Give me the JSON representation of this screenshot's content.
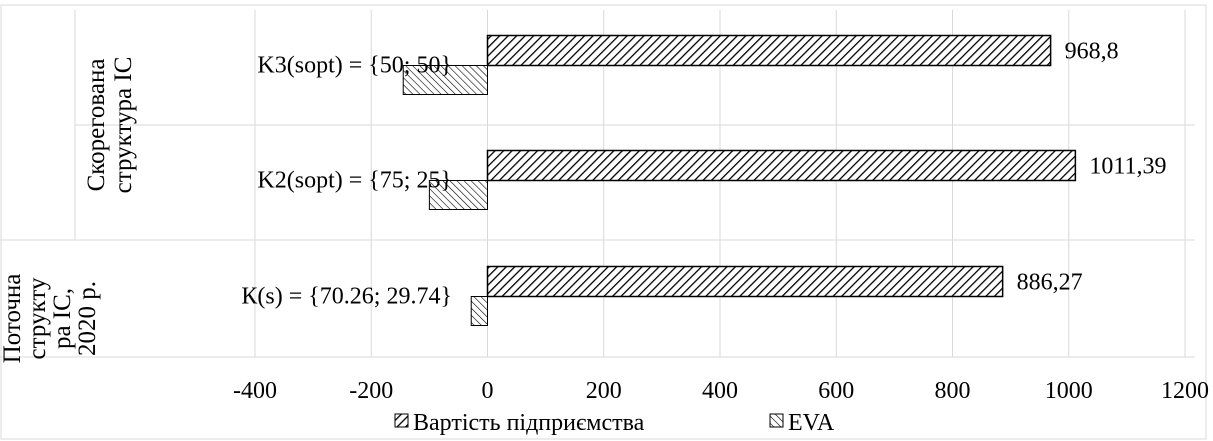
{
  "chart_data": {
    "type": "bar",
    "orientation": "horizontal",
    "groups": [
      {
        "label": "Скорегована структура ІС",
        "categories": [
          "K3(sopt) = {50; 50}",
          "K2(sopt) = {75; 25}"
        ]
      },
      {
        "label": "Поточна структу ра ІС, 2020 р.",
        "categories": [
          "К(s) = {70.26; 29.74}"
        ]
      }
    ],
    "categories": [
      "K3(sopt) = {50; 50}",
      "K2(sopt) = {75; 25}",
      "К(s) = {70.26; 29.74}"
    ],
    "series": [
      {
        "name": "Вартість підприємства",
        "values": [
          968.8,
          1011.39,
          886.27
        ],
        "labels": [
          "968,8",
          "1011,39",
          "886,27"
        ]
      },
      {
        "name": "EVA",
        "values": [
          -145,
          -100,
          -28
        ]
      }
    ],
    "xlim": [
      -400,
      1200
    ],
    "xticks": [
      "-400",
      "-200",
      "0",
      "200",
      "400",
      "600",
      "800",
      "1000",
      "1200"
    ],
    "grid": true,
    "legend": "bottom"
  },
  "colors": {
    "bar_fill": "#ffffff",
    "hatch": "#000000",
    "grid": "#d9d9d9"
  }
}
